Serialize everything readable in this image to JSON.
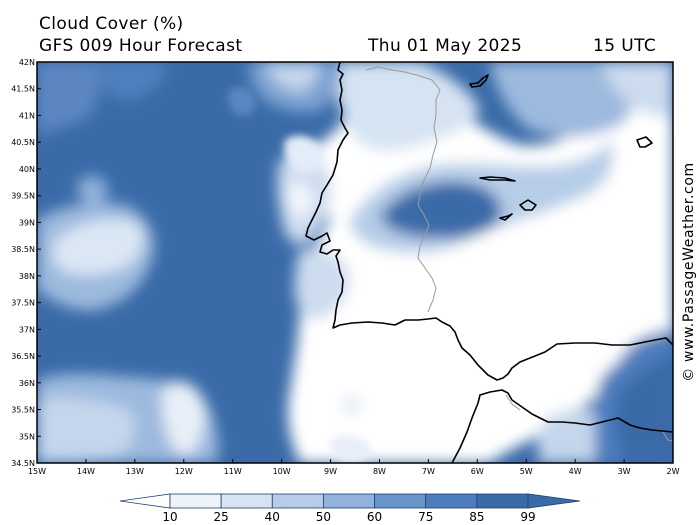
{
  "header": {
    "title": "Cloud Cover (%)",
    "subtitle": "GFS 009 Hour Forecast",
    "date": "Thu 01 May 2025",
    "time": "15 UTC"
  },
  "map": {
    "lat_labels": [
      "42N",
      "41.5N",
      "41N",
      "40.5N",
      "40N",
      "39.5N",
      "39N",
      "38.5N",
      "38N",
      "37.5N",
      "37N",
      "36.5N",
      "36N",
      "35.5N",
      "35N",
      "34.5N"
    ],
    "lon_labels": [
      "15W",
      "14W",
      "13W",
      "12W",
      "11W",
      "10W",
      "9W",
      "8W",
      "7W",
      "6W",
      "5W",
      "4W",
      "3W",
      "2W"
    ],
    "lat_range": [
      34.5,
      42
    ],
    "lon_range": [
      -15,
      -2
    ],
    "ocean_color": "#3a6ba8",
    "land_color": "#ffffff"
  },
  "colorbar": {
    "labels": [
      "10",
      "25",
      "40",
      "50",
      "60",
      "75",
      "85",
      "99"
    ],
    "colors": [
      "#ffffff",
      "#eef3fa",
      "#d6e3f2",
      "#b6cde8",
      "#90b2dc",
      "#6994ca",
      "#4d7dbd",
      "#3a6ba8"
    ]
  },
  "credit": "© www.PassageWeather.com"
}
